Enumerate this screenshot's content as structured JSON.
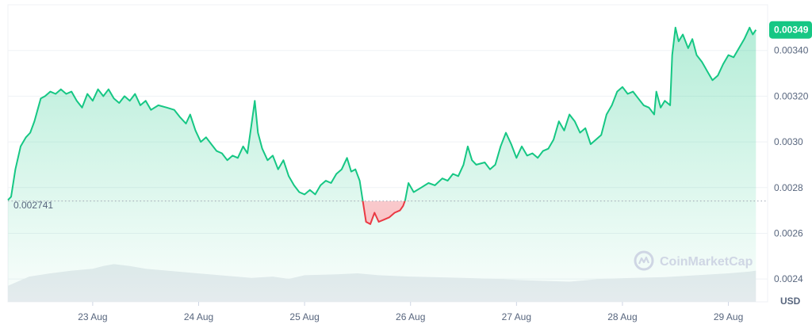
{
  "chart_data": {
    "type": "area",
    "currency": "USD",
    "reference_price": 0.002741,
    "reference_label": "0.002741",
    "current_price": 0.00349,
    "current_label": "0.00349",
    "ylim": [
      0.0023,
      0.0036
    ],
    "y_ticks": [
      {
        "value": 0.0024,
        "label": "0.0024"
      },
      {
        "value": 0.0026,
        "label": "0.0026"
      },
      {
        "value": 0.0028,
        "label": "0.0028"
      },
      {
        "value": 0.003,
        "label": "0.0030"
      },
      {
        "value": 0.0032,
        "label": "0.00320"
      },
      {
        "value": 0.0034,
        "label": "0.00340"
      }
    ],
    "x_ticks": [
      {
        "value": 0.8,
        "label": "23 Aug"
      },
      {
        "value": 1.8,
        "label": "24 Aug"
      },
      {
        "value": 2.8,
        "label": "25 Aug"
      },
      {
        "value": 3.8,
        "label": "26 Aug"
      },
      {
        "value": 4.8,
        "label": "27 Aug"
      },
      {
        "value": 5.8,
        "label": "28 Aug"
      },
      {
        "value": 6.8,
        "label": "29 Aug"
      }
    ],
    "xlim": [
      0.0,
      7.17
    ],
    "grid": true,
    "colors": {
      "up": "#16c784",
      "down": "#ea3943",
      "grid": "#eff2f5",
      "volume": "#e9ecf0"
    },
    "price": [
      [
        0.0,
        0.002745
      ],
      [
        0.03,
        0.00276
      ],
      [
        0.07,
        0.00288
      ],
      [
        0.12,
        0.00298
      ],
      [
        0.17,
        0.00302
      ],
      [
        0.21,
        0.00304
      ],
      [
        0.25,
        0.00309
      ],
      [
        0.28,
        0.00314
      ],
      [
        0.31,
        0.00319
      ],
      [
        0.35,
        0.0032
      ],
      [
        0.4,
        0.00322
      ],
      [
        0.45,
        0.00321
      ],
      [
        0.5,
        0.00323
      ],
      [
        0.55,
        0.00321
      ],
      [
        0.6,
        0.00322
      ],
      [
        0.65,
        0.00318
      ],
      [
        0.7,
        0.00315
      ],
      [
        0.75,
        0.00321
      ],
      [
        0.8,
        0.00318
      ],
      [
        0.85,
        0.00323
      ],
      [
        0.9,
        0.0032
      ],
      [
        0.95,
        0.00323
      ],
      [
        1.0,
        0.00319
      ],
      [
        1.05,
        0.00317
      ],
      [
        1.1,
        0.0032
      ],
      [
        1.15,
        0.00318
      ],
      [
        1.2,
        0.00321
      ],
      [
        1.25,
        0.00316
      ],
      [
        1.3,
        0.00318
      ],
      [
        1.35,
        0.00314
      ],
      [
        1.42,
        0.00316
      ],
      [
        1.5,
        0.00315
      ],
      [
        1.57,
        0.00314
      ],
      [
        1.62,
        0.00311
      ],
      [
        1.68,
        0.00308
      ],
      [
        1.72,
        0.00312
      ],
      [
        1.77,
        0.00305
      ],
      [
        1.82,
        0.003
      ],
      [
        1.87,
        0.00302
      ],
      [
        1.92,
        0.00299
      ],
      [
        1.97,
        0.00296
      ],
      [
        2.02,
        0.00295
      ],
      [
        2.07,
        0.00292
      ],
      [
        2.12,
        0.00294
      ],
      [
        2.17,
        0.00293
      ],
      [
        2.22,
        0.00298
      ],
      [
        2.26,
        0.00295
      ],
      [
        2.3,
        0.00308
      ],
      [
        2.33,
        0.00318
      ],
      [
        2.36,
        0.00304
      ],
      [
        2.4,
        0.00297
      ],
      [
        2.45,
        0.00292
      ],
      [
        2.5,
        0.00294
      ],
      [
        2.55,
        0.00288
      ],
      [
        2.6,
        0.00292
      ],
      [
        2.65,
        0.00285
      ],
      [
        2.7,
        0.00281
      ],
      [
        2.75,
        0.00278
      ],
      [
        2.8,
        0.00277
      ],
      [
        2.85,
        0.00279
      ],
      [
        2.9,
        0.00277
      ],
      [
        2.95,
        0.00281
      ],
      [
        3.0,
        0.00283
      ],
      [
        3.05,
        0.00282
      ],
      [
        3.1,
        0.00286
      ],
      [
        3.15,
        0.00288
      ],
      [
        3.2,
        0.00293
      ],
      [
        3.24,
        0.00287
      ],
      [
        3.28,
        0.00288
      ],
      [
        3.32,
        0.00283
      ],
      [
        3.35,
        0.00274
      ],
      [
        3.38,
        0.00265
      ],
      [
        3.42,
        0.00264
      ],
      [
        3.46,
        0.00269
      ],
      [
        3.5,
        0.00265
      ],
      [
        3.55,
        0.00266
      ],
      [
        3.6,
        0.00267
      ],
      [
        3.65,
        0.00269
      ],
      [
        3.7,
        0.0027
      ],
      [
        3.73,
        0.00272
      ],
      [
        3.75,
        0.002745
      ],
      [
        3.78,
        0.00282
      ],
      [
        3.83,
        0.00278
      ],
      [
        3.9,
        0.0028
      ],
      [
        3.97,
        0.00282
      ],
      [
        4.03,
        0.00281
      ],
      [
        4.1,
        0.00284
      ],
      [
        4.15,
        0.00283
      ],
      [
        4.2,
        0.00286
      ],
      [
        4.25,
        0.00285
      ],
      [
        4.3,
        0.0029
      ],
      [
        4.34,
        0.00298
      ],
      [
        4.38,
        0.00292
      ],
      [
        4.42,
        0.0029
      ],
      [
        4.5,
        0.00291
      ],
      [
        4.55,
        0.00288
      ],
      [
        4.6,
        0.0029
      ],
      [
        4.65,
        0.00298
      ],
      [
        4.7,
        0.00304
      ],
      [
        4.75,
        0.00299
      ],
      [
        4.8,
        0.00293
      ],
      [
        4.85,
        0.00298
      ],
      [
        4.9,
        0.00294
      ],
      [
        4.95,
        0.00295
      ],
      [
        5.0,
        0.00293
      ],
      [
        5.05,
        0.00296
      ],
      [
        5.1,
        0.00297
      ],
      [
        5.15,
        0.00301
      ],
      [
        5.2,
        0.00309
      ],
      [
        5.25,
        0.00305
      ],
      [
        5.3,
        0.00312
      ],
      [
        5.35,
        0.00309
      ],
      [
        5.4,
        0.00304
      ],
      [
        5.45,
        0.00306
      ],
      [
        5.5,
        0.00299
      ],
      [
        5.55,
        0.00301
      ],
      [
        5.6,
        0.00303
      ],
      [
        5.65,
        0.00312
      ],
      [
        5.7,
        0.00316
      ],
      [
        5.75,
        0.00322
      ],
      [
        5.8,
        0.00324
      ],
      [
        5.85,
        0.00321
      ],
      [
        5.9,
        0.00322
      ],
      [
        5.95,
        0.00319
      ],
      [
        6.0,
        0.00316
      ],
      [
        6.05,
        0.00315
      ],
      [
        6.1,
        0.00312
      ],
      [
        6.12,
        0.00322
      ],
      [
        6.16,
        0.00315
      ],
      [
        6.2,
        0.00318
      ],
      [
        6.25,
        0.00316
      ],
      [
        6.27,
        0.00338
      ],
      [
        6.3,
        0.0035
      ],
      [
        6.33,
        0.00344
      ],
      [
        6.37,
        0.00347
      ],
      [
        6.42,
        0.00341
      ],
      [
        6.46,
        0.00345
      ],
      [
        6.5,
        0.00338
      ],
      [
        6.55,
        0.00335
      ],
      [
        6.6,
        0.00331
      ],
      [
        6.65,
        0.00327
      ],
      [
        6.7,
        0.00329
      ],
      [
        6.75,
        0.00334
      ],
      [
        6.8,
        0.00338
      ],
      [
        6.85,
        0.00337
      ],
      [
        6.9,
        0.00341
      ],
      [
        6.95,
        0.00345
      ],
      [
        7.0,
        0.0035
      ],
      [
        7.03,
        0.00347
      ],
      [
        7.06,
        0.00349
      ]
    ],
    "volume": [
      [
        0.0,
        0.35
      ],
      [
        0.2,
        0.55
      ],
      [
        0.4,
        0.62
      ],
      [
        0.6,
        0.68
      ],
      [
        0.8,
        0.72
      ],
      [
        0.9,
        0.78
      ],
      [
        1.0,
        0.82
      ],
      [
        1.15,
        0.78
      ],
      [
        1.3,
        0.72
      ],
      [
        1.6,
        0.66
      ],
      [
        2.0,
        0.58
      ],
      [
        2.3,
        0.52
      ],
      [
        2.5,
        0.55
      ],
      [
        2.65,
        0.5
      ],
      [
        2.8,
        0.58
      ],
      [
        3.1,
        0.6
      ],
      [
        3.3,
        0.62
      ],
      [
        3.5,
        0.58
      ],
      [
        3.8,
        0.55
      ],
      [
        4.0,
        0.54
      ],
      [
        4.3,
        0.52
      ],
      [
        4.6,
        0.5
      ],
      [
        4.8,
        0.48
      ],
      [
        5.0,
        0.46
      ],
      [
        5.3,
        0.44
      ],
      [
        5.6,
        0.5
      ],
      [
        5.9,
        0.52
      ],
      [
        6.2,
        0.54
      ],
      [
        6.5,
        0.58
      ],
      [
        6.8,
        0.62
      ],
      [
        7.0,
        0.66
      ],
      [
        7.06,
        0.68
      ]
    ]
  },
  "watermark": {
    "text": "CoinMarketCap",
    "icon": "coinmarketcap-logo-icon"
  }
}
